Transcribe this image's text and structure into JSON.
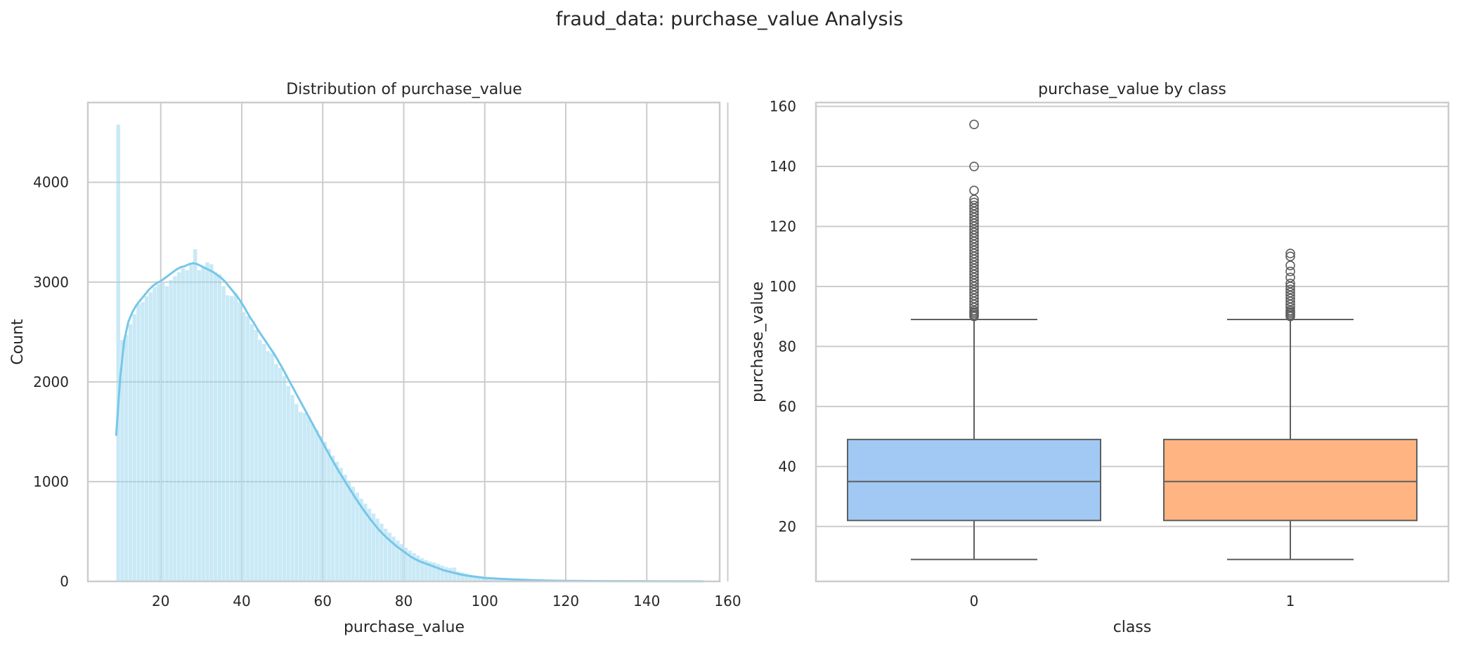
{
  "figure": {
    "suptitle": "fraud_data: purchase_value Analysis"
  },
  "chart_data": [
    {
      "type": "histogram",
      "title": "Distribution of purchase_value",
      "xlabel": "purchase_value",
      "ylabel": "Count",
      "xlim": [
        2,
        158
      ],
      "ylim": [
        0,
        4800
      ],
      "xticks": [
        20,
        40,
        60,
        80,
        100,
        120,
        140,
        160
      ],
      "yticks": [
        0,
        1000,
        2000,
        3000,
        4000
      ],
      "grid": true,
      "bar_color": "#87ceeb",
      "kde_color": "#76c7e9",
      "bin_start": 9,
      "bin_width": 1,
      "counts": [
        4580,
        2420,
        2470,
        2580,
        2680,
        2780,
        2800,
        2860,
        2900,
        2950,
        2980,
        3000,
        2960,
        3020,
        3060,
        3100,
        3140,
        3120,
        3180,
        3330,
        3120,
        3160,
        3200,
        3180,
        3100,
        3080,
        2960,
        2870,
        2860,
        2890,
        2800,
        2700,
        2660,
        2580,
        2520,
        2420,
        2380,
        2310,
        2290,
        2180,
        2140,
        2060,
        1960,
        1870,
        1780,
        1700,
        1690,
        1650,
        1580,
        1520,
        1460,
        1400,
        1330,
        1260,
        1200,
        1140,
        1070,
        1010,
        950,
        890,
        830,
        780,
        730,
        680,
        630,
        580,
        530,
        490,
        450,
        410,
        375,
        340,
        310,
        285,
        260,
        235,
        215,
        200,
        190,
        175,
        160,
        145,
        135,
        140,
        100,
        90,
        80,
        70,
        62,
        55,
        48,
        42,
        36,
        31,
        27,
        23,
        20,
        17,
        14,
        12,
        10,
        9,
        8,
        7,
        6,
        5,
        5,
        4,
        4,
        3,
        3,
        3,
        2,
        2,
        2,
        2,
        2,
        1,
        1,
        1,
        1,
        1,
        1,
        1,
        1,
        1,
        1,
        1,
        1,
        1,
        1,
        1,
        1,
        1,
        1,
        1,
        1,
        1,
        1,
        1,
        1,
        1,
        1,
        1,
        1
      ],
      "kde_x": [
        9,
        10,
        11,
        12,
        13,
        14,
        15,
        16,
        17,
        18,
        19,
        20,
        21,
        22,
        23,
        24,
        25,
        26,
        27,
        28,
        29,
        30,
        31,
        32,
        33,
        34,
        35,
        36,
        37,
        38,
        39,
        40,
        41,
        42,
        43,
        44,
        45,
        46,
        47,
        48,
        49,
        50,
        52,
        54,
        56,
        58,
        60,
        62,
        64,
        66,
        68,
        70,
        72,
        74,
        76,
        78,
        80,
        82,
        84,
        86,
        88,
        90,
        92,
        94,
        96,
        98,
        100,
        104,
        108,
        112,
        116,
        120,
        130,
        140,
        154
      ],
      "kde_y": [
        1460,
        2050,
        2420,
        2600,
        2700,
        2770,
        2820,
        2870,
        2920,
        2960,
        2990,
        3010,
        3040,
        3070,
        3100,
        3130,
        3150,
        3160,
        3180,
        3190,
        3180,
        3160,
        3140,
        3120,
        3100,
        3070,
        3040,
        3000,
        2950,
        2900,
        2850,
        2790,
        2720,
        2650,
        2590,
        2520,
        2460,
        2400,
        2340,
        2280,
        2210,
        2140,
        1990,
        1840,
        1690,
        1540,
        1390,
        1240,
        1100,
        970,
        840,
        720,
        610,
        510,
        430,
        360,
        300,
        240,
        200,
        170,
        140,
        110,
        90,
        70,
        55,
        45,
        35,
        25,
        18,
        12,
        8,
        5,
        3,
        2,
        1
      ]
    },
    {
      "type": "box",
      "title": "purchase_value by class",
      "xlabel": "class",
      "ylabel": "purchase_value",
      "categories": [
        "0",
        "1"
      ],
      "xlim": [
        -0.5,
        1.5
      ],
      "ylim": [
        1.7,
        161.3
      ],
      "yticks": [
        20,
        40,
        60,
        80,
        100,
        120,
        140,
        160
      ],
      "grid": true,
      "colors": [
        "#a1c9f4",
        "#ffb482"
      ],
      "series": [
        {
          "q1": 22,
          "median": 35,
          "q3": 49,
          "whisker_low": 9,
          "whisker_high": 89,
          "outliers": [
            90,
            90.5,
            91,
            91.5,
            92,
            93,
            94,
            95,
            96,
            97,
            98,
            99,
            100,
            101,
            102,
            103,
            104,
            105,
            106,
            107,
            108,
            109,
            110,
            111,
            112,
            113,
            114,
            115,
            116,
            117,
            118,
            119,
            120,
            121,
            122,
            123,
            124,
            125,
            126,
            127,
            128,
            129,
            132,
            140,
            154
          ]
        },
        {
          "q1": 22,
          "median": 35,
          "q3": 49,
          "whisker_low": 9,
          "whisker_high": 89,
          "outliers": [
            90,
            90.5,
            91,
            91.5,
            92,
            93,
            94,
            95,
            96,
            97,
            98,
            99,
            100,
            101,
            103,
            105,
            107,
            110,
            111
          ]
        }
      ]
    }
  ]
}
